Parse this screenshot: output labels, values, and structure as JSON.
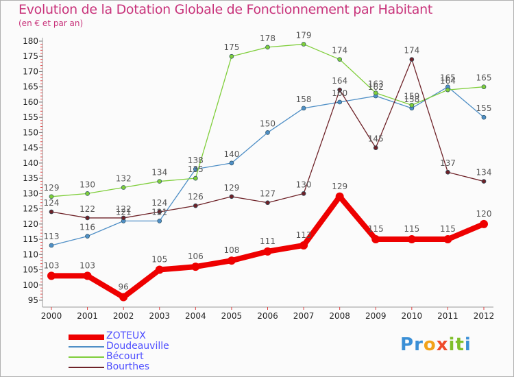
{
  "header": {
    "title": "Evolution de la Dotation Globale de Fonctionnement par Habitant",
    "subtitle": "(en € et par an)"
  },
  "chart_data": {
    "type": "line",
    "title": "Evolution de la Dotation Globale de Fonctionnement par Habitant",
    "subtitle": "(en € et par an)",
    "xlabel": "",
    "ylabel": "",
    "categories": [
      "2000",
      "2001",
      "2002",
      "2003",
      "2004",
      "2005",
      "2006",
      "2007",
      "2008",
      "2009",
      "2010",
      "2011",
      "2012"
    ],
    "ylim": [
      95,
      180
    ],
    "yticks": [
      95,
      100,
      105,
      110,
      115,
      120,
      125,
      130,
      135,
      140,
      145,
      150,
      155,
      160,
      165,
      170,
      175,
      180
    ],
    "grid": false,
    "legend_position": "bottom-left",
    "series": [
      {
        "name": "Doudeauville",
        "color": "#4f8fc6",
        "values": [
          113,
          116,
          121,
          121,
          138,
          140,
          150,
          158,
          160,
          162,
          158,
          165,
          155
        ]
      },
      {
        "name": "Bécourt",
        "color": "#7fce3a",
        "values": [
          129,
          130,
          132,
          134,
          135,
          175,
          178,
          179,
          174,
          163,
          159,
          164,
          165
        ]
      },
      {
        "name": "Bourthes",
        "color": "#6e2228",
        "values": [
          124,
          122,
          122,
          124,
          126,
          129,
          127,
          130,
          164,
          145,
          174,
          137,
          134
        ]
      },
      {
        "name": "ZOTEUX",
        "color": "#ee0000",
        "values": [
          103,
          103,
          96,
          105,
          106,
          108,
          111,
          113,
          129,
          115,
          115,
          115,
          120
        ]
      }
    ]
  },
  "legend": {
    "items": [
      "ZOTEUX",
      "Doudeauville",
      "Bécourt",
      "Bourthes"
    ]
  },
  "logo": {
    "letters": [
      "P",
      "r",
      "o",
      "x",
      "i",
      "t",
      "i"
    ],
    "colors": [
      "#3a8fd6",
      "#3a8fd6",
      "#f2a21a",
      "#ef4b2a",
      "#7fbf2a",
      "#7fbf2a",
      "#3a8fd6"
    ]
  }
}
